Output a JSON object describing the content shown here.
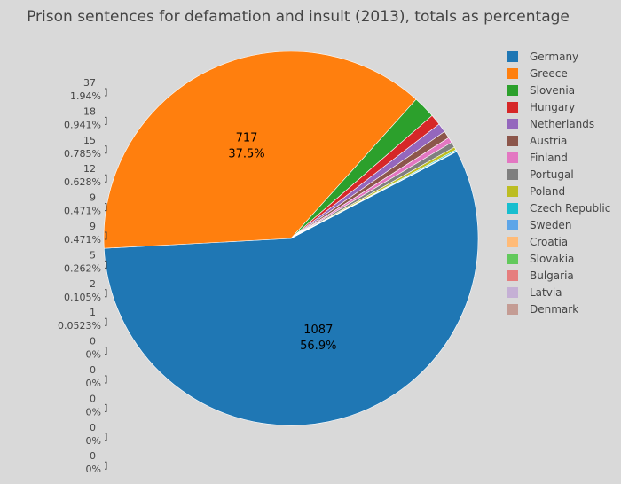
{
  "chart_data": {
    "type": "pie",
    "title": "Prison sentences for defamation and insult (2013), totals as percentage",
    "categories": [
      "Germany",
      "Greece",
      "Slovenia",
      "Hungary",
      "Netherlands",
      "Austria",
      "Finland",
      "Portugal",
      "Poland",
      "Czech Republic",
      "Sweden",
      "Croatia",
      "Slovakia",
      "Bulgaria",
      "Latvia",
      "Denmark"
    ],
    "values": [
      1087,
      717,
      37,
      18,
      15,
      12,
      9,
      9,
      5,
      2,
      1,
      0,
      0,
      0,
      0,
      0
    ],
    "percent_labels": [
      "56.9%",
      "37.5%",
      "1.94%",
      "0.941%",
      "0.785%",
      "0.628%",
      "0.471%",
      "0.471%",
      "0.262%",
      "0.105%",
      "0.0523%",
      "0%",
      "0%",
      "0%",
      "0%",
      "0%"
    ],
    "colors": [
      "#1f77b4",
      "#ff7f0e",
      "#2ca02c",
      "#d62728",
      "#9467bd",
      "#8c564b",
      "#e377c2",
      "#7f7f7f",
      "#bcbd22",
      "#17becf",
      "#5da5e8",
      "#ffbb78",
      "#62c95c",
      "#e67e7e",
      "#c5b0d5",
      "#c49c94"
    ],
    "legend_position": "right"
  }
}
